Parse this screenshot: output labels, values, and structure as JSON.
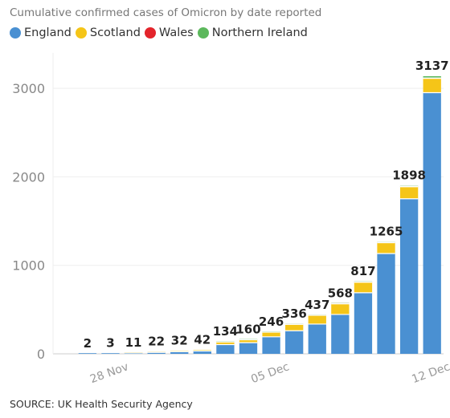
{
  "chart_data": {
    "type": "bar",
    "stacked": true,
    "title": "Cumulative confirmed cases of Omicron by date reported",
    "source": "SOURCE: UK Health Security Agency",
    "categories": [
      "26 Nov",
      "27 Nov",
      "28 Nov",
      "29 Nov",
      "30 Nov",
      "01 Dec",
      "02 Dec",
      "03 Dec",
      "04 Dec",
      "05 Dec",
      "06 Dec",
      "07 Dec",
      "08 Dec",
      "09 Dec",
      "10 Dec",
      "11 Dec",
      "12 Dec"
    ],
    "x_tick_labels": [
      {
        "index": 2,
        "label": "28 Nov"
      },
      {
        "index": 9,
        "label": "05 Dec"
      },
      {
        "index": 16,
        "label": "12 Dec"
      }
    ],
    "totals": [
      2,
      3,
      11,
      22,
      32,
      42,
      134,
      160,
      246,
      336,
      437,
      568,
      817,
      1265,
      1898,
      3137
    ],
    "total_label_indices": [
      1,
      2,
      3,
      4,
      5,
      6,
      7,
      8,
      9,
      10,
      11,
      12,
      13,
      14,
      15,
      16
    ],
    "series": [
      {
        "name": "England",
        "color": "#4a90d2",
        "values": [
          0,
          2,
          3,
          10,
          16,
          24,
          32,
          104,
          126,
          192,
          261,
          336,
          445,
          690,
          1133,
          1752,
          2951
        ]
      },
      {
        "name": "Scotland",
        "color": "#f5c518",
        "values": [
          0,
          0,
          0,
          1,
          6,
          8,
          10,
          29,
          33,
          53,
          72,
          99,
          120,
          119,
          122,
          136,
          162
        ]
      },
      {
        "name": "Wales",
        "color": "#e3242b",
        "values": [
          0,
          0,
          0,
          0,
          0,
          0,
          0,
          0,
          0,
          0,
          1,
          1,
          1,
          2,
          3,
          3,
          4
        ]
      },
      {
        "name": "Northern Ireland",
        "color": "#5cb85c",
        "values": [
          0,
          0,
          0,
          0,
          0,
          0,
          0,
          1,
          1,
          1,
          2,
          1,
          2,
          6,
          7,
          7,
          20
        ]
      }
    ],
    "ylim": [
      0,
      3400
    ],
    "yticks": [
      0,
      1000,
      2000,
      3000
    ],
    "grid": true,
    "legend_position": "top-left"
  }
}
